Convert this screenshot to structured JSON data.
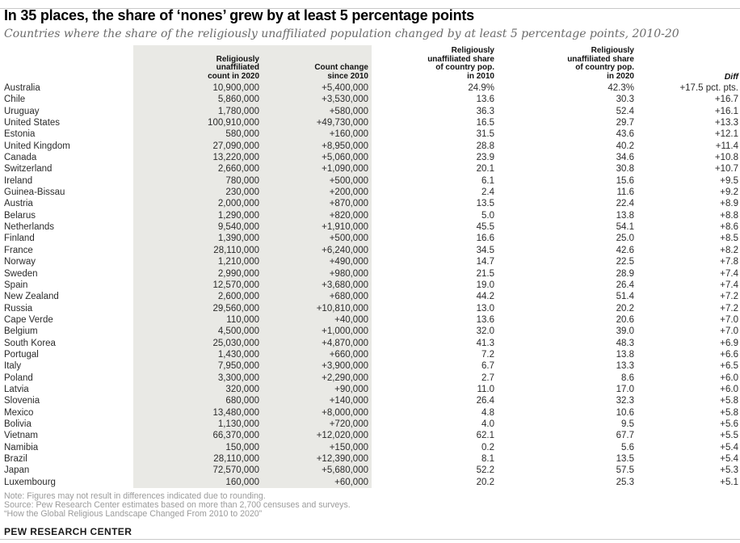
{
  "title": "In 35 places, the share of ‘nones’ grew by at least 5 percentage points",
  "subtitle": "Countries where the share of the religiously unaffiliated population changed by at least 5 percentage points, 2010-20",
  "chart_data": {
    "type": "table",
    "columns": [
      "",
      "Religiously\nunaffiliated\ncount in 2020",
      "Count change\nsince 2010",
      "Religiously\nunaffiliated share\nof country pop.\nin 2010",
      "Religiously\nunaffiliated share\nof country pop.\nin 2020",
      "Diff"
    ],
    "column_keys": [
      "country",
      "count-2020",
      "count-change",
      "share-2010",
      "share-2020",
      "diff"
    ],
    "shaded_columns": [
      1,
      2
    ],
    "rows": [
      [
        "Australia",
        "10,900,000",
        "+5,400,000",
        "24.9%",
        "42.3%",
        "+17.5 pct. pts."
      ],
      [
        "Chile",
        "5,860,000",
        "+3,530,000",
        "13.6",
        "30.3",
        "+16.7"
      ],
      [
        "Uruguay",
        "1,780,000",
        "+580,000",
        "36.3",
        "52.4",
        "+16.1"
      ],
      [
        "United States",
        "100,910,000",
        "+49,730,000",
        "16.5",
        "29.7",
        "+13.3"
      ],
      [
        "Estonia",
        "580,000",
        "+160,000",
        "31.5",
        "43.6",
        "+12.1"
      ],
      [
        "United Kingdom",
        "27,090,000",
        "+8,950,000",
        "28.8",
        "40.2",
        "+11.4"
      ],
      [
        "Canada",
        "13,220,000",
        "+5,060,000",
        "23.9",
        "34.6",
        "+10.8"
      ],
      [
        "Switzerland",
        "2,660,000",
        "+1,090,000",
        "20.1",
        "30.8",
        "+10.7"
      ],
      [
        "Ireland",
        "780,000",
        "+500,000",
        "6.1",
        "15.6",
        "+9.5"
      ],
      [
        "Guinea-Bissau",
        "230,000",
        "+200,000",
        "2.4",
        "11.6",
        "+9.2"
      ],
      [
        "Austria",
        "2,000,000",
        "+870,000",
        "13.5",
        "22.4",
        "+8.9"
      ],
      [
        "Belarus",
        "1,290,000",
        "+820,000",
        "5.0",
        "13.8",
        "+8.8"
      ],
      [
        "Netherlands",
        "9,540,000",
        "+1,910,000",
        "45.5",
        "54.1",
        "+8.6"
      ],
      [
        "Finland",
        "1,390,000",
        "+500,000",
        "16.6",
        "25.0",
        "+8.5"
      ],
      [
        "France",
        "28,110,000",
        "+6,240,000",
        "34.5",
        "42.6",
        "+8.2"
      ],
      [
        "Norway",
        "1,210,000",
        "+490,000",
        "14.7",
        "22.5",
        "+7.8"
      ],
      [
        "Sweden",
        "2,990,000",
        "+980,000",
        "21.5",
        "28.9",
        "+7.4"
      ],
      [
        "Spain",
        "12,570,000",
        "+3,680,000",
        "19.0",
        "26.4",
        "+7.4"
      ],
      [
        "New Zealand",
        "2,600,000",
        "+680,000",
        "44.2",
        "51.4",
        "+7.2"
      ],
      [
        "Russia",
        "29,560,000",
        "+10,810,000",
        "13.0",
        "20.2",
        "+7.2"
      ],
      [
        "Cape Verde",
        "110,000",
        "+40,000",
        "13.6",
        "20.6",
        "+7.0"
      ],
      [
        "Belgium",
        "4,500,000",
        "+1,000,000",
        "32.0",
        "39.0",
        "+7.0"
      ],
      [
        "South Korea",
        "25,030,000",
        "+4,870,000",
        "41.3",
        "48.3",
        "+6.9"
      ],
      [
        "Portugal",
        "1,430,000",
        "+660,000",
        "7.2",
        "13.8",
        "+6.6"
      ],
      [
        "Italy",
        "7,950,000",
        "+3,900,000",
        "6.7",
        "13.3",
        "+6.5"
      ],
      [
        "Poland",
        "3,300,000",
        "+2,290,000",
        "2.7",
        "8.6",
        "+6.0"
      ],
      [
        "Latvia",
        "320,000",
        "+90,000",
        "11.0",
        "17.0",
        "+6.0"
      ],
      [
        "Slovenia",
        "680,000",
        "+140,000",
        "26.4",
        "32.3",
        "+5.8"
      ],
      [
        "Mexico",
        "13,480,000",
        "+8,000,000",
        "4.8",
        "10.6",
        "+5.8"
      ],
      [
        "Bolivia",
        "1,130,000",
        "+720,000",
        "4.0",
        "9.5",
        "+5.6"
      ],
      [
        "Vietnam",
        "66,370,000",
        "+12,020,000",
        "62.1",
        "67.7",
        "+5.5"
      ],
      [
        "Namibia",
        "150,000",
        "+150,000",
        "0.2",
        "5.6",
        "+5.4"
      ],
      [
        "Brazil",
        "28,110,000",
        "+12,390,000",
        "8.1",
        "13.5",
        "+5.4"
      ],
      [
        "Japan",
        "72,570,000",
        "+5,680,000",
        "52.2",
        "57.5",
        "+5.3"
      ],
      [
        "Luxembourg",
        "160,000",
        "+60,000",
        "20.2",
        "25.3",
        "+5.1"
      ]
    ]
  },
  "notes": {
    "note": "Note: Figures may not result in differences indicated due to rounding.",
    "source": "Source: Pew Research Center estimates based on more than 2,700 censuses and surveys.",
    "report": "“How the Global Religious Landscape Changed From 2010 to 2020”"
  },
  "footer": "PEW RESEARCH CENTER",
  "colors": {
    "shaded_column_bg": "#e9e9e5",
    "title_text": "#000000",
    "subtitle_text": "#6b6b6b",
    "body_text": "#2b2b2b",
    "note_text": "#9b9b9b",
    "rule": "#c9c9c9"
  }
}
